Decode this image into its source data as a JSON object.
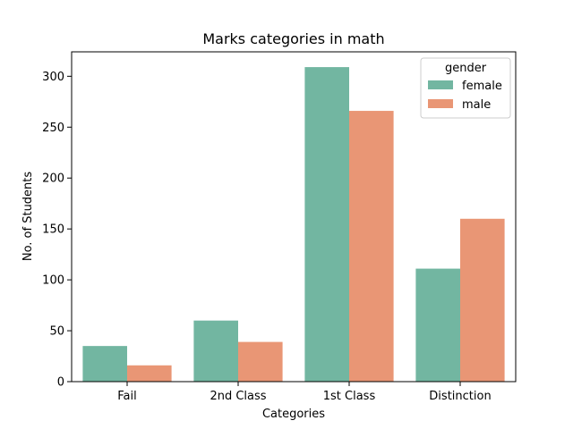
{
  "chart_data": {
    "type": "bar",
    "title": "Marks categories in math",
    "xlabel": "Categories",
    "ylabel": "No. of Students",
    "categories": [
      "Fail",
      "2nd Class",
      "1st Class",
      "Distinction"
    ],
    "series": [
      {
        "name": "female",
        "color": "#72b6a1",
        "values": [
          35,
          60,
          309,
          111
        ]
      },
      {
        "name": "male",
        "color": "#e99675",
        "values": [
          16,
          39,
          266,
          160
        ]
      }
    ],
    "ylim": [
      0,
      324
    ],
    "yticks": [
      0,
      50,
      100,
      150,
      200,
      250,
      300
    ],
    "grid": false,
    "legend": {
      "title": "gender",
      "placement": "top-right"
    }
  }
}
